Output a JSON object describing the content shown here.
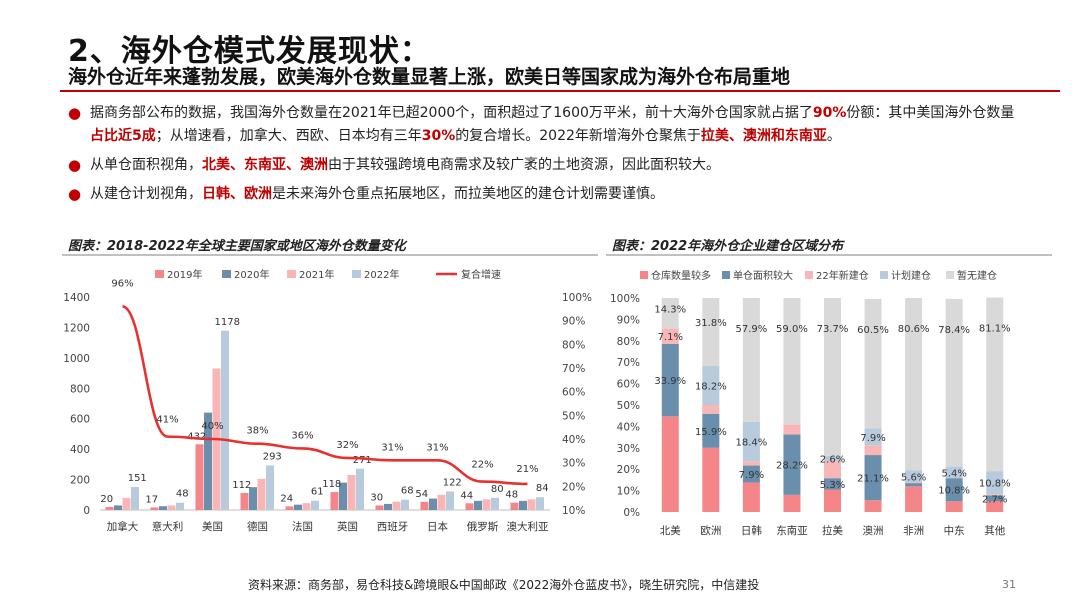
{
  "header": {
    "title": "2、海外仓模式发展现状：",
    "subtitle": "海外仓近年来蓬勃发展，欧美海外仓数量显著上涨，欧美日等国家成为海外仓布局重地"
  },
  "bullets": [
    {
      "segments": [
        {
          "text": "据商务部公布的数据，我国海外仓数量在2021年已超2000个，面积超过了1600万平米，前十大海外仓国家就占据了",
          "hl": false
        },
        {
          "text": "90%",
          "hl": true
        },
        {
          "text": "份额：其中美国海外仓数量",
          "hl": false
        },
        {
          "text": "占比近5成",
          "hl": true
        },
        {
          "text": "；从增速看，加拿大、西欧、日本均有三年",
          "hl": false
        },
        {
          "text": "30%",
          "hl": true
        },
        {
          "text": "的复合增长。2022年新增海外仓聚焦于",
          "hl": false
        },
        {
          "text": "拉美、澳洲和东南亚",
          "hl": true
        },
        {
          "text": "。",
          "hl": false
        }
      ]
    },
    {
      "segments": [
        {
          "text": "从单仓面积视角，",
          "hl": false
        },
        {
          "text": "北美、东南亚、澳洲",
          "hl": true
        },
        {
          "text": "由于其较强跨境电商需求及较广袤的土地资源，因此面积较大。",
          "hl": false
        }
      ]
    },
    {
      "segments": [
        {
          "text": "从建仓计划视角，",
          "hl": false
        },
        {
          "text": "日韩、欧洲",
          "hl": true
        },
        {
          "text": "是未来海外仓重点拓展地区，而拉美地区的建仓计划需要谨慎。",
          "hl": false
        }
      ]
    }
  ],
  "footer": {
    "source": "资料来源：商务部，易仓科技&跨境眼&中国邮政《2022海外仓蓝皮书》，晓生研究院，中信建投",
    "page": "31"
  },
  "colors": {
    "accent": "#c00000",
    "s2019": "#f4868a",
    "s2020": "#6a8fac",
    "s2021": "#f9b6b6",
    "s2022": "#b7cbdc",
    "cagr": "#e8302e",
    "grey": "#d9d9d9"
  },
  "chart_data": [
    {
      "type": "bar",
      "title": "图表：2018-2022年全球主要国家或地区海外仓数量变化",
      "categories": [
        "加拿大",
        "意大利",
        "美国",
        "德国",
        "法国",
        "英国",
        "西班牙",
        "日本",
        "俄罗斯",
        "澳大利亚"
      ],
      "series": [
        {
          "name": "2019年",
          "values": [
            20,
            17,
            432,
            112,
            24,
            118,
            30,
            54,
            44,
            48
          ]
        },
        {
          "name": "2020年",
          "values": [
            30,
            25,
            640,
            150,
            35,
            180,
            40,
            75,
            60,
            60
          ]
        },
        {
          "name": "2021年",
          "values": [
            80,
            30,
            930,
            205,
            45,
            230,
            55,
            100,
            70,
            70
          ]
        },
        {
          "name": "2022年",
          "values": [
            151,
            48,
            1178,
            293,
            61,
            271,
            68,
            122,
            80,
            84
          ]
        }
      ],
      "bar_labels": {
        "2019年": [
          20,
          17,
          432,
          112,
          24,
          118,
          30,
          54,
          44,
          48
        ],
        "2022年": [
          151,
          48,
          1178,
          293,
          61,
          271,
          68,
          122,
          80,
          84
        ]
      },
      "line": {
        "name": "复合增速",
        "values": [
          96,
          41,
          40,
          38,
          36,
          32,
          31,
          31,
          22,
          21
        ],
        "labels": [
          "96%",
          "41%",
          "40%",
          "38%",
          "36%",
          "32%",
          "31%",
          "31%",
          "22%",
          "21%"
        ]
      },
      "y_ticks": [
        "0",
        "200",
        "400",
        "600",
        "800",
        "1000",
        "1200",
        "1400"
      ],
      "y2_ticks": [
        "10%",
        "20%",
        "30%",
        "40%",
        "50%",
        "60%",
        "70%",
        "80%",
        "90%",
        "100%"
      ],
      "ylim": [
        0,
        1400
      ],
      "y2lim": [
        10,
        100
      ],
      "legend_position": "top"
    },
    {
      "type": "bar",
      "stacked": true,
      "title": "图表：2022年海外仓企业建仓区域分布",
      "categories": [
        "北美",
        "欧洲",
        "日韩",
        "东南亚",
        "拉美",
        "澳洲",
        "非洲",
        "中东",
        "其他"
      ],
      "series": [
        {
          "name": "仓库数量较多",
          "values": [
            44.7,
            30.0,
            13.8,
            8.0,
            10.5,
            5.5,
            12.0,
            5.0,
            5.0
          ]
        },
        {
          "name": "单仓面积较大",
          "values": [
            33.9,
            15.9,
            7.9,
            28.2,
            5.3,
            21.1,
            1.5,
            10.8,
            2.7
          ]
        },
        {
          "name": "22年新建仓",
          "values": [
            7.1,
            4.1,
            2.0,
            4.8,
            7.9,
            4.6,
            0.3,
            0.0,
            0.6
          ]
        },
        {
          "name": "计划建仓",
          "values": [
            0.0,
            18.2,
            18.4,
            0.0,
            2.6,
            7.9,
            5.6,
            5.4,
            10.8
          ]
        },
        {
          "name": "暂无建仓",
          "values": [
            14.3,
            31.8,
            57.9,
            59.0,
            73.7,
            60.5,
            80.6,
            78.4,
            81.1
          ]
        }
      ],
      "point_labels": [
        {
          "category": "北美",
          "series": "单仓面积较大",
          "text": "33.9%"
        },
        {
          "category": "北美",
          "series": "22年新建仓",
          "text": "7.1%"
        },
        {
          "category": "北美",
          "series": "暂无建仓",
          "text": "14.3%"
        },
        {
          "category": "欧洲",
          "series": "单仓面积较大",
          "text": "15.9%"
        },
        {
          "category": "欧洲",
          "series": "计划建仓",
          "text": "18.2%"
        },
        {
          "category": "欧洲",
          "series": "暂无建仓",
          "text": "31.8%"
        },
        {
          "category": "日韩",
          "series": "单仓面积较大",
          "text": "7.9%"
        },
        {
          "category": "日韩",
          "series": "计划建仓",
          "text": "18.4%"
        },
        {
          "category": "日韩",
          "series": "暂无建仓",
          "text": "57.9%"
        },
        {
          "category": "东南亚",
          "series": "单仓面积较大",
          "text": "28.2%"
        },
        {
          "category": "东南亚",
          "series": "暂无建仓",
          "text": "59.0%"
        },
        {
          "category": "拉美",
          "series": "单仓面积较大",
          "text": "5.3%"
        },
        {
          "category": "拉美",
          "series": "计划建仓",
          "text": "2.6%"
        },
        {
          "category": "拉美",
          "series": "暂无建仓",
          "text": "73.7%"
        },
        {
          "category": "澳洲",
          "series": "单仓面积较大",
          "text": "21.1%"
        },
        {
          "category": "澳洲",
          "series": "计划建仓",
          "text": "7.9%"
        },
        {
          "category": "澳洲",
          "series": "暂无建仓",
          "text": "60.5%"
        },
        {
          "category": "非洲",
          "series": "计划建仓",
          "text": "5.6%"
        },
        {
          "category": "非洲",
          "series": "暂无建仓",
          "text": "80.6%"
        },
        {
          "category": "中东",
          "series": "单仓面积较大",
          "text": "10.8%"
        },
        {
          "category": "中东",
          "series": "计划建仓",
          "text": "5.4%"
        },
        {
          "category": "中东",
          "series": "暂无建仓",
          "text": "78.4%"
        },
        {
          "category": "其他",
          "series": "单仓面积较大",
          "text": "2.7%"
        },
        {
          "category": "其他",
          "series": "计划建仓",
          "text": "10.8%"
        },
        {
          "category": "其他",
          "series": "暂无建仓",
          "text": "81.1%"
        }
      ],
      "y_ticks": [
        "0%",
        "10%",
        "20%",
        "30%",
        "40%",
        "50%",
        "60%",
        "70%",
        "80%",
        "90%",
        "100%"
      ],
      "ylim": [
        0,
        100
      ],
      "legend_position": "top"
    }
  ]
}
